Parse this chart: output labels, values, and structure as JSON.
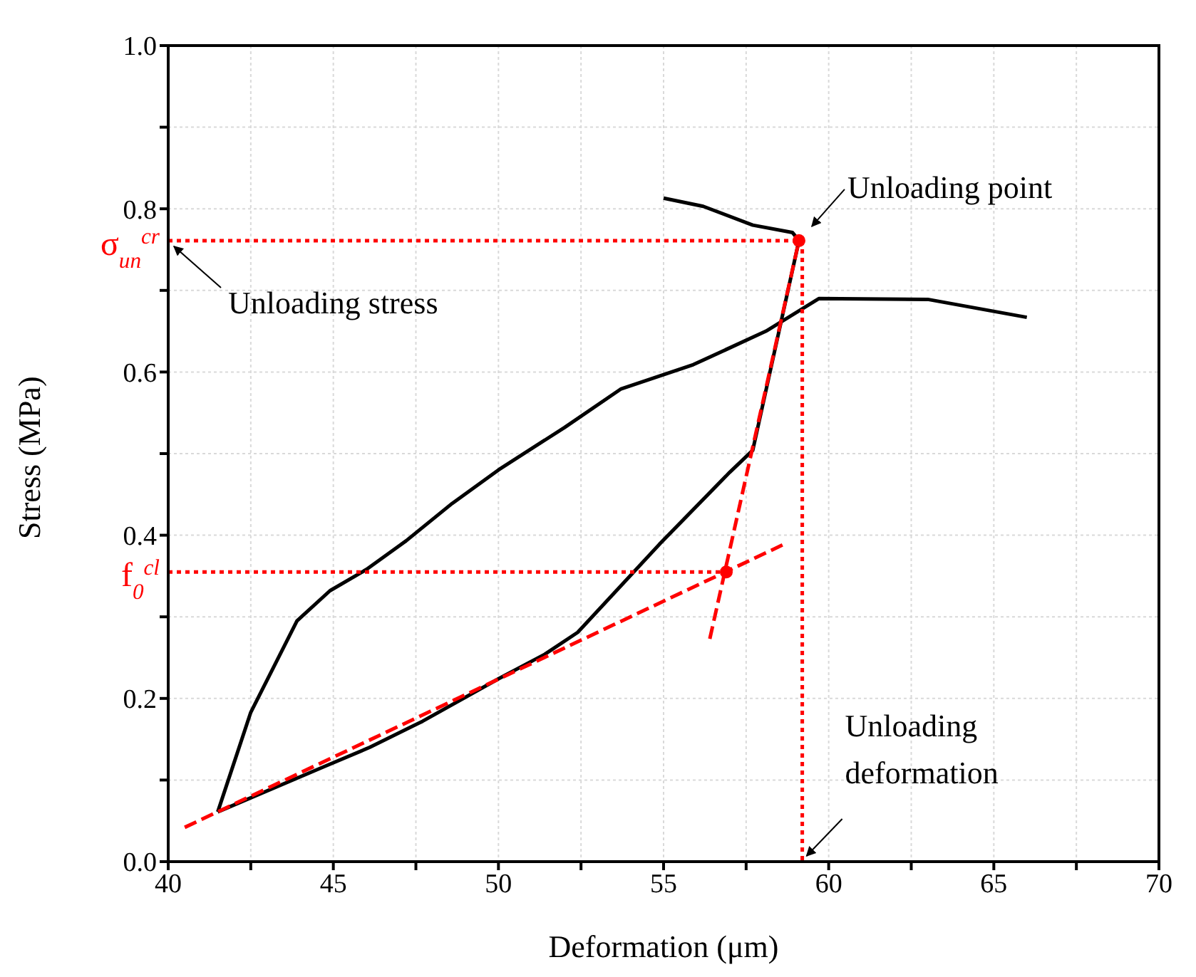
{
  "chart_data": {
    "type": "line",
    "xlabel": "Deformation (μm)",
    "ylabel": "Stress (MPa)",
    "xlim": [
      40,
      70
    ],
    "ylim": [
      0,
      1
    ],
    "xticks": [
      40,
      {
        "value": 42.5,
        "label": null
      },
      45,
      {
        "value": 47.5,
        "label": null
      },
      50,
      {
        "value": 52.5,
        "label": null
      },
      55,
      {
        "value": 57.5,
        "label": null
      },
      60,
      {
        "value": 62.5,
        "label": null
      },
      65,
      {
        "value": 67.5,
        "label": null
      },
      70
    ],
    "yticks": [
      {
        "value": 0,
        "label": "0.0"
      },
      {
        "value": 0.1,
        "label": null
      },
      {
        "value": 0.2,
        "label": "0.2"
      },
      {
        "value": 0.3,
        "label": null
      },
      {
        "value": 0.4,
        "label": "0.4"
      },
      {
        "value": 0.5,
        "label": null
      },
      {
        "value": 0.6,
        "label": "0.6"
      },
      {
        "value": 0.7,
        "label": null
      },
      {
        "value": 0.8,
        "label": "0.8"
      },
      {
        "value": 0.9,
        "label": null
      },
      {
        "value": 1,
        "label": "1.0"
      }
    ],
    "grid": true,
    "series": [
      {
        "color": "#000000",
        "line_style": "solid",
        "marker": "none",
        "x": [
          41.5,
          42.5,
          43.9,
          44.9,
          46,
          47.2,
          48.6,
          50,
          52,
          53.7,
          55.9,
          58.1,
          59.7,
          63,
          66
        ],
        "values": [
          0.061,
          0.183,
          0.295,
          0.332,
          0.358,
          0.393,
          0.439,
          0.48,
          0.532,
          0.579,
          0.609,
          0.65,
          0.69,
          0.689,
          0.667
        ]
      },
      {
        "color": "#000000",
        "line_style": "solid",
        "marker": "none",
        "x": [
          55,
          56.2,
          57.7,
          58.9,
          59.1,
          57.7,
          57,
          54.9,
          52.4,
          51.4,
          50,
          47.7,
          46.1,
          44.7,
          41.5
        ],
        "values": [
          0.813,
          0.803,
          0.78,
          0.771,
          0.761,
          0.504,
          0.477,
          0.39,
          0.281,
          0.254,
          0.224,
          0.172,
          0.14,
          0.116,
          0.061
        ]
      },
      {
        "color": "#ff0000",
        "line_style": "dashed",
        "marker": "none",
        "x": [
          40.5,
          58.6
        ],
        "values": [
          0.042,
          0.388
        ]
      },
      {
        "color": "#ff0000",
        "line_style": "dashed",
        "marker": "none",
        "x": [
          56.4,
          59.1
        ],
        "values": [
          0.273,
          0.761
        ]
      },
      {
        "name": "σ$_{un}$$^{cr}$",
        "color": "#ff0000",
        "line_style": "dotted",
        "marker": "none",
        "x": [
          40,
          59.1
        ],
        "values": [
          0.761,
          0.761
        ]
      },
      {
        "name": "f$_{0}$$^{cl}$",
        "color": "#ff0000",
        "line_style": "dotted",
        "marker": "none",
        "x": [
          40,
          56.9
        ],
        "values": [
          0.355,
          0.355
        ]
      },
      {
        "color": "#ff0000",
        "line_style": "dotted",
        "marker": "none",
        "x": [
          59.2,
          59.2
        ],
        "values": [
          0.761,
          0
        ]
      },
      {
        "type": "scatter",
        "color": "#ff0000",
        "marker": "circle",
        "x": [
          59.1,
          56.9
        ],
        "values": [
          0.761,
          0.355
        ]
      }
    ],
    "annotations": [
      {
        "text": "Unloading point",
        "x": 59.1,
        "y": 0.761
      },
      {
        "text": "Unloading stress",
        "x": 40,
        "y": 0.761
      },
      {
        "text": "Unloading\ndeformation",
        "x": 59.2,
        "y": 0
      }
    ]
  }
}
